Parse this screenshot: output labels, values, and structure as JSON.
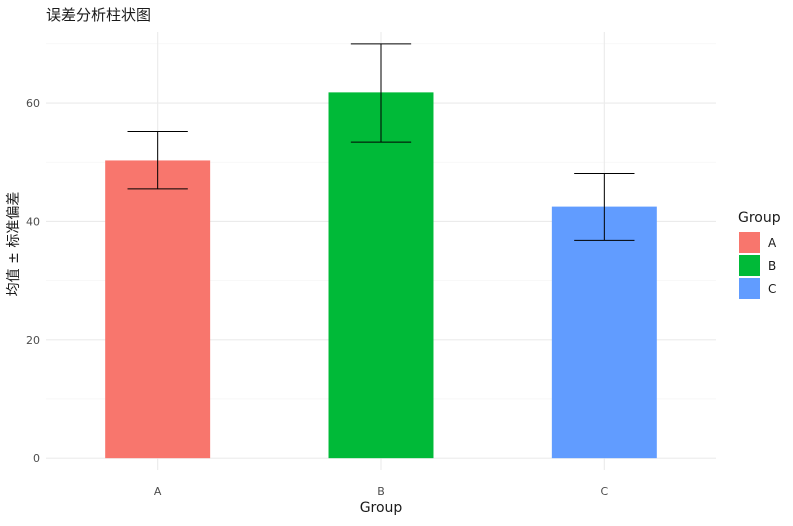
{
  "chart_data": {
    "type": "bar",
    "title": "误差分析柱状图",
    "xlabel": "Group",
    "ylabel": "均值 ± 标准偏差",
    "categories": [
      "A",
      "B",
      "C"
    ],
    "values": [
      50.3,
      61.8,
      42.5
    ],
    "errors": {
      "lower": [
        45.5,
        53.4,
        36.8
      ],
      "upper": [
        55.2,
        70.0,
        48.1
      ]
    },
    "colors": [
      "#F8766D",
      "#00BA38",
      "#619CFF"
    ],
    "ylim": [
      -2,
      72
    ],
    "yticks": [
      0,
      20,
      40,
      60
    ],
    "grid": true,
    "legend": {
      "title": "Group",
      "placement": "right",
      "entries": [
        "A",
        "B",
        "C"
      ]
    }
  }
}
